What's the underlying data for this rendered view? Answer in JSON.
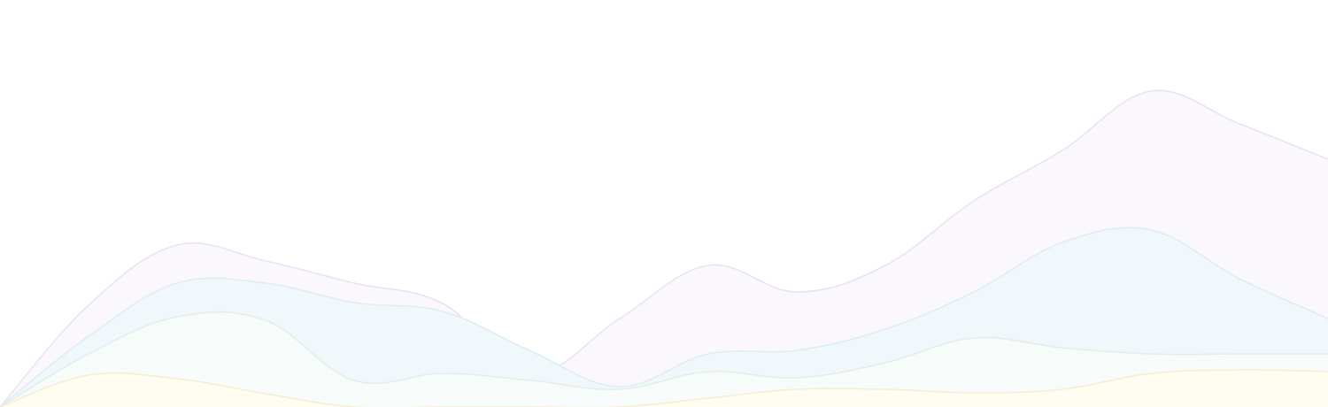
{
  "chart_data": {
    "type": "area",
    "title": "",
    "xlabel": "",
    "ylabel": "",
    "grid": false,
    "legend": "none",
    "ylim": [
      0,
      360
    ],
    "x": [
      0,
      1,
      2,
      3,
      4,
      5,
      6,
      7,
      8,
      9,
      10,
      11,
      12,
      13,
      14,
      15
    ],
    "series": [
      {
        "color": "#fbf8fd",
        "stroke": "#e9e2f2",
        "values": [
          0,
          115,
          183,
          165,
          140,
          117,
          38,
          100,
          160,
          130,
          160,
          233,
          290,
          357,
          320,
          280
        ]
      },
      {
        "color": "#f0f8fb",
        "stroke": "#ddeef3",
        "values": [
          0,
          80,
          140,
          140,
          118,
          108,
          63,
          23,
          60,
          64,
          88,
          130,
          186,
          200,
          145,
          100
        ]
      },
      {
        "color": "#f7fbf9",
        "stroke": "#e4eee8",
        "values": [
          0,
          60,
          102,
          98,
          30,
          38,
          30,
          20,
          40,
          33,
          50,
          78,
          67,
          60,
          60,
          60
        ]
      },
      {
        "color": "#fffcf2",
        "stroke": "#f7eed0",
        "values": [
          0,
          36,
          32,
          15,
          0,
          0,
          0,
          0,
          10,
          20,
          20,
          16,
          20,
          38,
          42,
          40
        ]
      }
    ]
  }
}
